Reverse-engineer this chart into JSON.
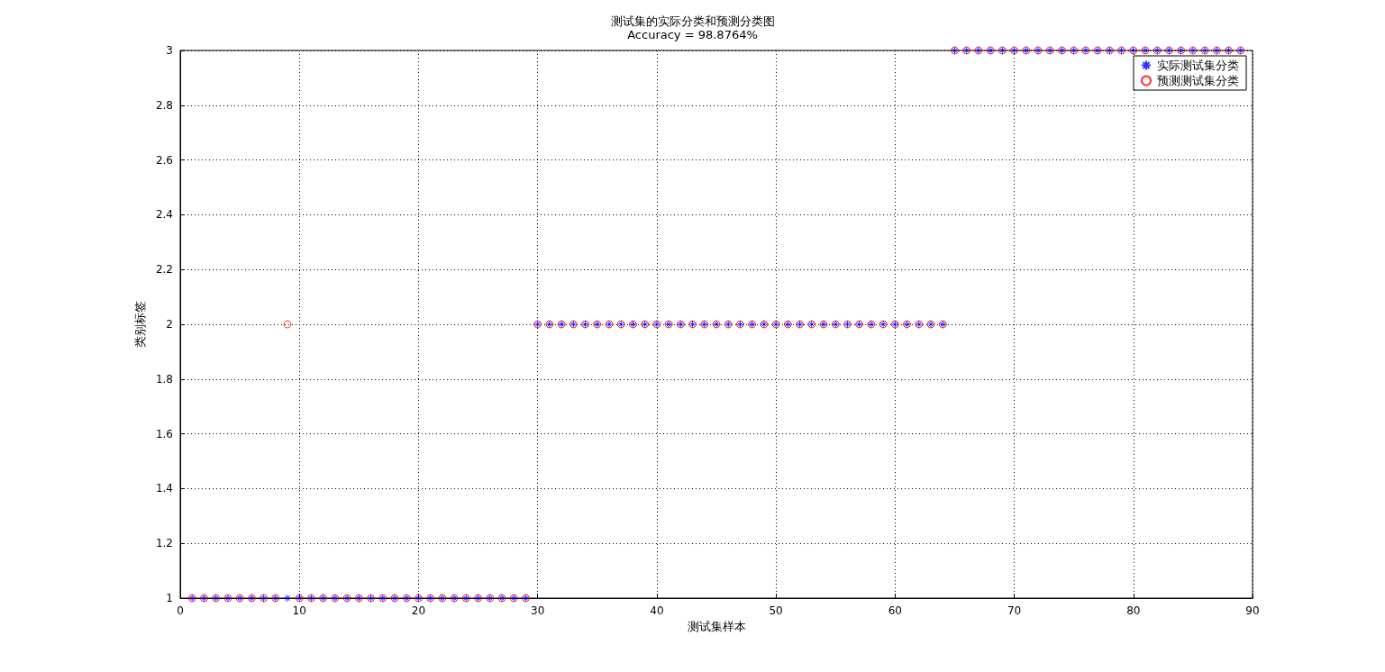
{
  "chart_data": {
    "type": "scatter",
    "title": "测试集的实际分类和预测分类图",
    "subtitle": "Accuracy = 98.8764%",
    "xlabel": "测试集样本",
    "ylabel": "类别标签",
    "xlim": [
      0,
      90
    ],
    "xticks": [
      0,
      10,
      20,
      30,
      40,
      50,
      60,
      70,
      80,
      90
    ],
    "ylim": [
      1,
      3
    ],
    "yticks": [
      1,
      1.2,
      1.4,
      1.6,
      1.8,
      2,
      2.2,
      2.4,
      2.6,
      2.8,
      3
    ],
    "grid": true,
    "legend": "top right",
    "x": [
      1,
      2,
      3,
      4,
      5,
      6,
      7,
      8,
      9,
      10,
      11,
      12,
      13,
      14,
      15,
      16,
      17,
      18,
      19,
      20,
      21,
      22,
      23,
      24,
      25,
      26,
      27,
      28,
      29,
      30,
      31,
      32,
      33,
      34,
      35,
      36,
      37,
      38,
      39,
      40,
      41,
      42,
      43,
      44,
      45,
      46,
      47,
      48,
      49,
      50,
      51,
      52,
      53,
      54,
      55,
      56,
      57,
      58,
      59,
      60,
      61,
      62,
      63,
      64,
      65,
      66,
      67,
      68,
      69,
      70,
      71,
      72,
      73,
      74,
      75,
      76,
      77,
      78,
      79,
      80,
      81,
      82,
      83,
      84,
      85,
      86,
      87,
      88,
      89
    ],
    "series": [
      {
        "name": "实际测试集分类",
        "color": "#0000ff",
        "marker": "cross",
        "values": [
          1,
          1,
          1,
          1,
          1,
          1,
          1,
          1,
          1,
          1,
          1,
          1,
          1,
          1,
          1,
          1,
          1,
          1,
          1,
          1,
          1,
          1,
          1,
          1,
          1,
          1,
          1,
          1,
          1,
          2,
          2,
          2,
          2,
          2,
          2,
          2,
          2,
          2,
          2,
          2,
          2,
          2,
          2,
          2,
          2,
          2,
          2,
          2,
          2,
          2,
          2,
          2,
          2,
          2,
          2,
          2,
          2,
          2,
          2,
          2,
          2,
          2,
          2,
          2,
          3,
          3,
          3,
          3,
          3,
          3,
          3,
          3,
          3,
          3,
          3,
          3,
          3,
          3,
          3,
          3,
          3,
          3,
          3,
          3,
          3,
          3,
          3,
          3,
          3
        ]
      },
      {
        "name": "预测测试集分类",
        "color": "#ff0000",
        "marker": "circle",
        "values": [
          1,
          1,
          1,
          1,
          1,
          1,
          1,
          1,
          2,
          1,
          1,
          1,
          1,
          1,
          1,
          1,
          1,
          1,
          1,
          1,
          1,
          1,
          1,
          1,
          1,
          1,
          1,
          1,
          1,
          2,
          2,
          2,
          2,
          2,
          2,
          2,
          2,
          2,
          2,
          2,
          2,
          2,
          2,
          2,
          2,
          2,
          2,
          2,
          2,
          2,
          2,
          2,
          2,
          2,
          2,
          2,
          2,
          2,
          2,
          2,
          2,
          2,
          2,
          2,
          3,
          3,
          3,
          3,
          3,
          3,
          3,
          3,
          3,
          3,
          3,
          3,
          3,
          3,
          3,
          3,
          3,
          3,
          3,
          3,
          3,
          3,
          3,
          3,
          3
        ]
      }
    ]
  }
}
